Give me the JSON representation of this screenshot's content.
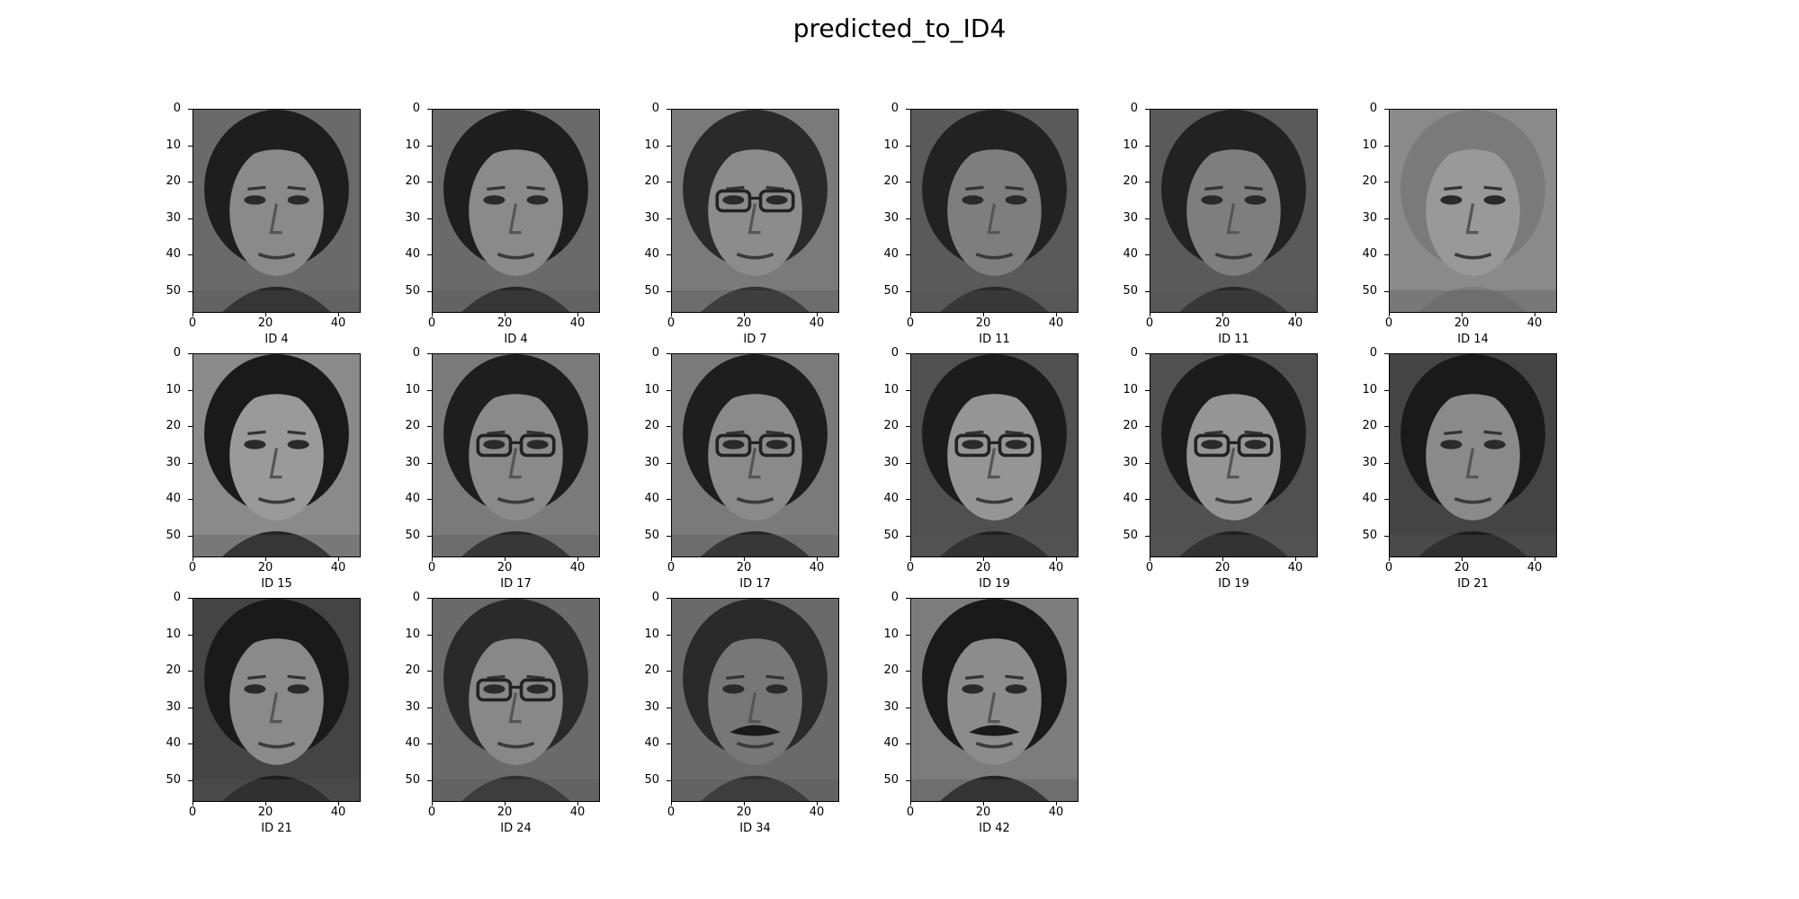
{
  "figure": {
    "title": "predicted_to_ID4",
    "y_ticks": [
      "0",
      "10",
      "20",
      "30",
      "40",
      "50"
    ],
    "x_ticks": [
      "0",
      "20",
      "40"
    ]
  },
  "panels": [
    {
      "label": "ID 4",
      "hair": "#1e1e1e",
      "skin": "#8a8a8a",
      "bg": "#6a6a6a",
      "glasses": false,
      "mustache": false
    },
    {
      "label": "ID 4",
      "hair": "#1e1e1e",
      "skin": "#8a8a8a",
      "bg": "#6a6a6a",
      "glasses": false,
      "mustache": false
    },
    {
      "label": "ID 7",
      "hair": "#2a2a2a",
      "skin": "#8c8c8c",
      "bg": "#7a7a7a",
      "glasses": true,
      "mustache": false
    },
    {
      "label": "ID 11",
      "hair": "#222222",
      "skin": "#7e7e7e",
      "bg": "#5a5a5a",
      "glasses": false,
      "mustache": false
    },
    {
      "label": "ID 11",
      "hair": "#222222",
      "skin": "#7e7e7e",
      "bg": "#5a5a5a",
      "glasses": false,
      "mustache": false
    },
    {
      "label": "ID 14",
      "hair": "#7a7a7a",
      "skin": "#999999",
      "bg": "#8a8a8a",
      "glasses": false,
      "mustache": false
    },
    {
      "label": "ID 15",
      "hair": "#1a1a1a",
      "skin": "#9a9a9a",
      "bg": "#8a8a8a",
      "glasses": false,
      "mustache": false
    },
    {
      "label": "ID 17",
      "hair": "#1e1e1e",
      "skin": "#8a8a8a",
      "bg": "#7a7a7a",
      "glasses": true,
      "mustache": false
    },
    {
      "label": "ID 17",
      "hair": "#1e1e1e",
      "skin": "#8a8a8a",
      "bg": "#7a7a7a",
      "glasses": true,
      "mustache": false
    },
    {
      "label": "ID 19",
      "hair": "#1c1c1c",
      "skin": "#959595",
      "bg": "#505050",
      "glasses": true,
      "mustache": false
    },
    {
      "label": "ID 19",
      "hair": "#1c1c1c",
      "skin": "#959595",
      "bg": "#505050",
      "glasses": true,
      "mustache": false
    },
    {
      "label": "ID 21",
      "hair": "#1a1a1a",
      "skin": "#8a8a8a",
      "bg": "#444444",
      "glasses": false,
      "mustache": false
    },
    {
      "label": "ID 21",
      "hair": "#1a1a1a",
      "skin": "#8a8a8a",
      "bg": "#444444",
      "glasses": false,
      "mustache": false
    },
    {
      "label": "ID 24",
      "hair": "#2a2a2a",
      "skin": "#888888",
      "bg": "#6a6a6a",
      "glasses": true,
      "mustache": false
    },
    {
      "label": "ID 34",
      "hair": "#2a2a2a",
      "skin": "#777777",
      "bg": "#6a6a6a",
      "glasses": false,
      "mustache": true
    },
    {
      "label": "ID 42",
      "hair": "#1a1a1a",
      "skin": "#8c8c8c",
      "bg": "#7c7c7c",
      "glasses": false,
      "mustache": true
    }
  ]
}
